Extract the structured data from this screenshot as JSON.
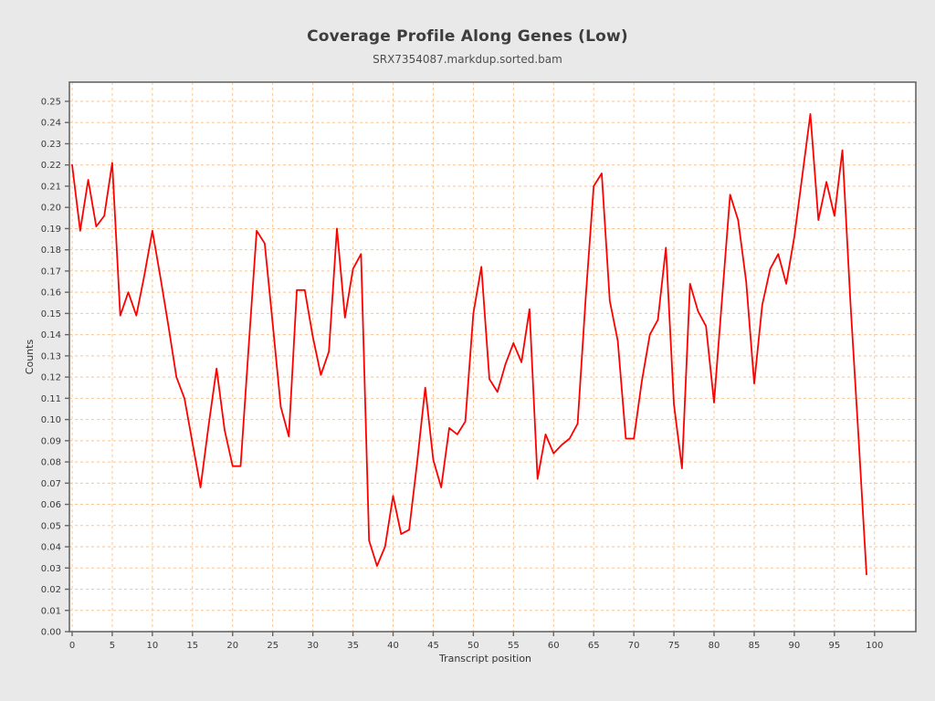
{
  "page": {
    "background_color": "#e9e9e9",
    "plot_background_color": "#ffffff",
    "grid_color": "#f4c79d",
    "frame_color": "#666666",
    "tick_label_color": "#3a3a3a",
    "title_color": "#3d3d3d"
  },
  "chart_data": {
    "type": "line",
    "title": "Coverage Profile Along Genes (Low)",
    "subtitle": "SRX7354087.markdup.sorted.bam",
    "xlabel": "Transcript position",
    "ylabel": "Counts",
    "series_name": "coverage",
    "series_color": "#ff0000",
    "grid": "on",
    "legend": "none",
    "xlim": [
      0,
      105
    ],
    "ylim": [
      0,
      0.25
    ],
    "x_ticks": [
      0,
      5,
      10,
      15,
      20,
      25,
      30,
      35,
      40,
      45,
      50,
      55,
      60,
      65,
      70,
      75,
      80,
      85,
      90,
      95,
      100
    ],
    "y_ticks": [
      0,
      0.01,
      0.02,
      0.03,
      0.04,
      0.05,
      0.06,
      0.07,
      0.08,
      0.09,
      0.1,
      0.11,
      0.12,
      0.13,
      0.14,
      0.15,
      0.16,
      0.17,
      0.18,
      0.19,
      0.2,
      0.21,
      0.22,
      0.23,
      0.24,
      0.25
    ],
    "x": [
      0,
      1,
      2,
      3,
      4,
      5,
      6,
      7,
      8,
      9,
      10,
      11,
      12,
      13,
      14,
      15,
      16,
      17,
      18,
      19,
      20,
      21,
      22,
      23,
      24,
      25,
      26,
      27,
      28,
      29,
      30,
      31,
      32,
      33,
      34,
      35,
      36,
      37,
      38,
      39,
      40,
      41,
      42,
      43,
      44,
      45,
      46,
      47,
      48,
      49,
      50,
      51,
      52,
      53,
      54,
      55,
      56,
      57,
      58,
      59,
      60,
      61,
      62,
      63,
      64,
      65,
      66,
      67,
      68,
      69,
      70,
      71,
      72,
      73,
      74,
      75,
      76,
      77,
      78,
      79,
      80,
      81,
      82,
      83,
      84,
      85,
      86,
      87,
      88,
      89,
      90,
      91,
      92,
      93,
      94,
      95,
      96,
      97,
      98,
      99
    ],
    "values": [
      0.22,
      0.189,
      0.213,
      0.191,
      0.196,
      0.221,
      0.149,
      0.16,
      0.149,
      0.168,
      0.189,
      0.167,
      0.144,
      0.12,
      0.11,
      0.089,
      0.068,
      0.097,
      0.124,
      0.095,
      0.078,
      0.078,
      0.134,
      0.189,
      0.183,
      0.145,
      0.106,
      0.092,
      0.161,
      0.161,
      0.139,
      0.121,
      0.132,
      0.19,
      0.148,
      0.171,
      0.178,
      0.043,
      0.031,
      0.04,
      0.064,
      0.046,
      0.048,
      0.08,
      0.115,
      0.081,
      0.068,
      0.096,
      0.093,
      0.099,
      0.15,
      0.172,
      0.119,
      0.113,
      0.126,
      0.136,
      0.127,
      0.152,
      0.072,
      0.093,
      0.084,
      0.088,
      0.091,
      0.098,
      0.157,
      0.21,
      0.216,
      0.156,
      0.137,
      0.091,
      0.091,
      0.118,
      0.14,
      0.147,
      0.181,
      0.107,
      0.077,
      0.164,
      0.151,
      0.144,
      0.108,
      0.157,
      0.206,
      0.194,
      0.165,
      0.117,
      0.154,
      0.171,
      0.178,
      0.164,
      0.186,
      0.215,
      0.244,
      0.194,
      0.212,
      0.196,
      0.227,
      0.155,
      0.092,
      0.027
    ]
  }
}
